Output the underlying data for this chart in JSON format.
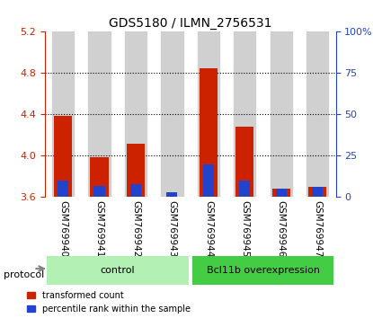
{
  "title": "GDS5180 / ILMN_2756531",
  "samples": [
    "GSM769940",
    "GSM769941",
    "GSM769942",
    "GSM769943",
    "GSM769944",
    "GSM769945",
    "GSM769946",
    "GSM769947"
  ],
  "transformed_counts": [
    4.39,
    3.99,
    4.12,
    3.6,
    4.85,
    4.28,
    3.68,
    3.7
  ],
  "percentile_ranks": [
    10,
    7,
    8,
    3,
    20,
    10,
    5,
    6
  ],
  "ylim": [
    3.6,
    5.2
  ],
  "yticks_left": [
    3.6,
    4.0,
    4.4,
    4.8,
    5.2
  ],
  "yticks_right": [
    0,
    25,
    50,
    75,
    100
  ],
  "yright_lim": [
    0,
    100
  ],
  "groups": [
    {
      "label": "control",
      "samples": [
        0,
        1,
        2,
        3
      ],
      "color": "#b3f0b3"
    },
    {
      "label": "Bcl11b overexpression",
      "samples": [
        4,
        5,
        6,
        7
      ],
      "color": "#44cc44"
    }
  ],
  "bar_color_red": "#cc2200",
  "bar_color_blue": "#2244cc",
  "bar_width": 0.5,
  "bg_color_plot": "#ffffff",
  "bg_color_columns": "#d0d0d0",
  "left_axis_color": "#cc2200",
  "right_axis_color": "#2244cc",
  "protocol_label": "protocol",
  "legend_red": "transformed count",
  "legend_blue": "percentile rank within the sample"
}
